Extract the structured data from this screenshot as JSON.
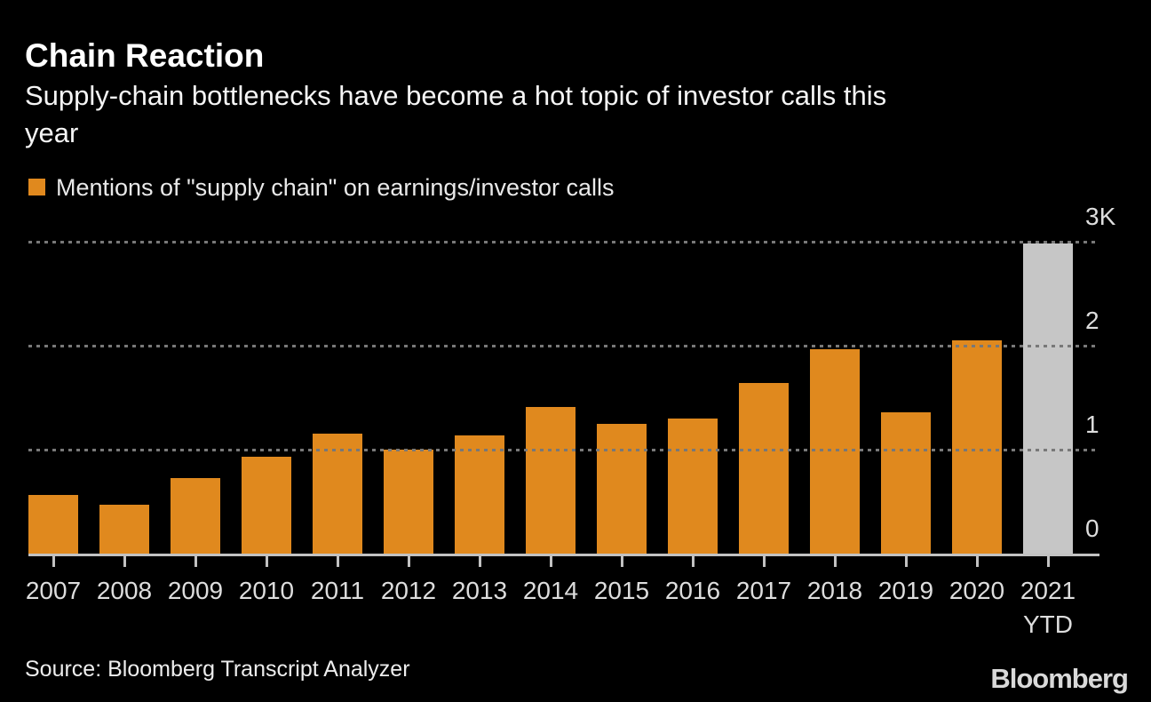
{
  "header": {
    "subtitle_lines": [
      "Supply-chain bottlenecks have become a hot topic of investor calls this",
      "year"
    ]
  },
  "footer": {
    "source": "Source: Bloomberg Transcript Analyzer",
    "logo": "Bloomberg"
  },
  "chart_data": {
    "type": "bar",
    "title": "Chain Reaction",
    "subtitle": "Supply-chain bottlenecks have become a hot topic of investor calls this year",
    "legend": "Mentions of \"supply chain\" on earnings/investor calls",
    "categories": [
      "2007",
      "2008",
      "2009",
      "2010",
      "2011",
      "2012",
      "2013",
      "2014",
      "2015",
      "2016",
      "2017",
      "2018",
      "2019",
      "2020",
      "2021 YTD"
    ],
    "values": [
      560,
      470,
      730,
      930,
      1150,
      1000,
      1140,
      1410,
      1250,
      1300,
      1640,
      1970,
      1360,
      2050,
      2980
    ],
    "ylabel": "",
    "xlabel": "",
    "ylim": [
      0,
      3000
    ],
    "y_ticks": [
      {
        "label": "3K",
        "value": 3000
      },
      {
        "label": "2",
        "value": 2000
      },
      {
        "label": "1",
        "value": 1000
      },
      {
        "label": "0",
        "value": 0
      }
    ],
    "gridline_values": [
      1000,
      2000,
      3000
    ],
    "grid_style": "dotted horizontal, drawn over bars",
    "y_axis_side": "right",
    "legend_position": "top-left",
    "background": "#000000",
    "bar_color": "#E0891E",
    "highlight_bar": "2021 YTD",
    "highlight_color": "#C6C6C6",
    "axis_color": "#C2C2C2",
    "gridline_color": "#787878",
    "text_color": "#DDDDDD"
  }
}
